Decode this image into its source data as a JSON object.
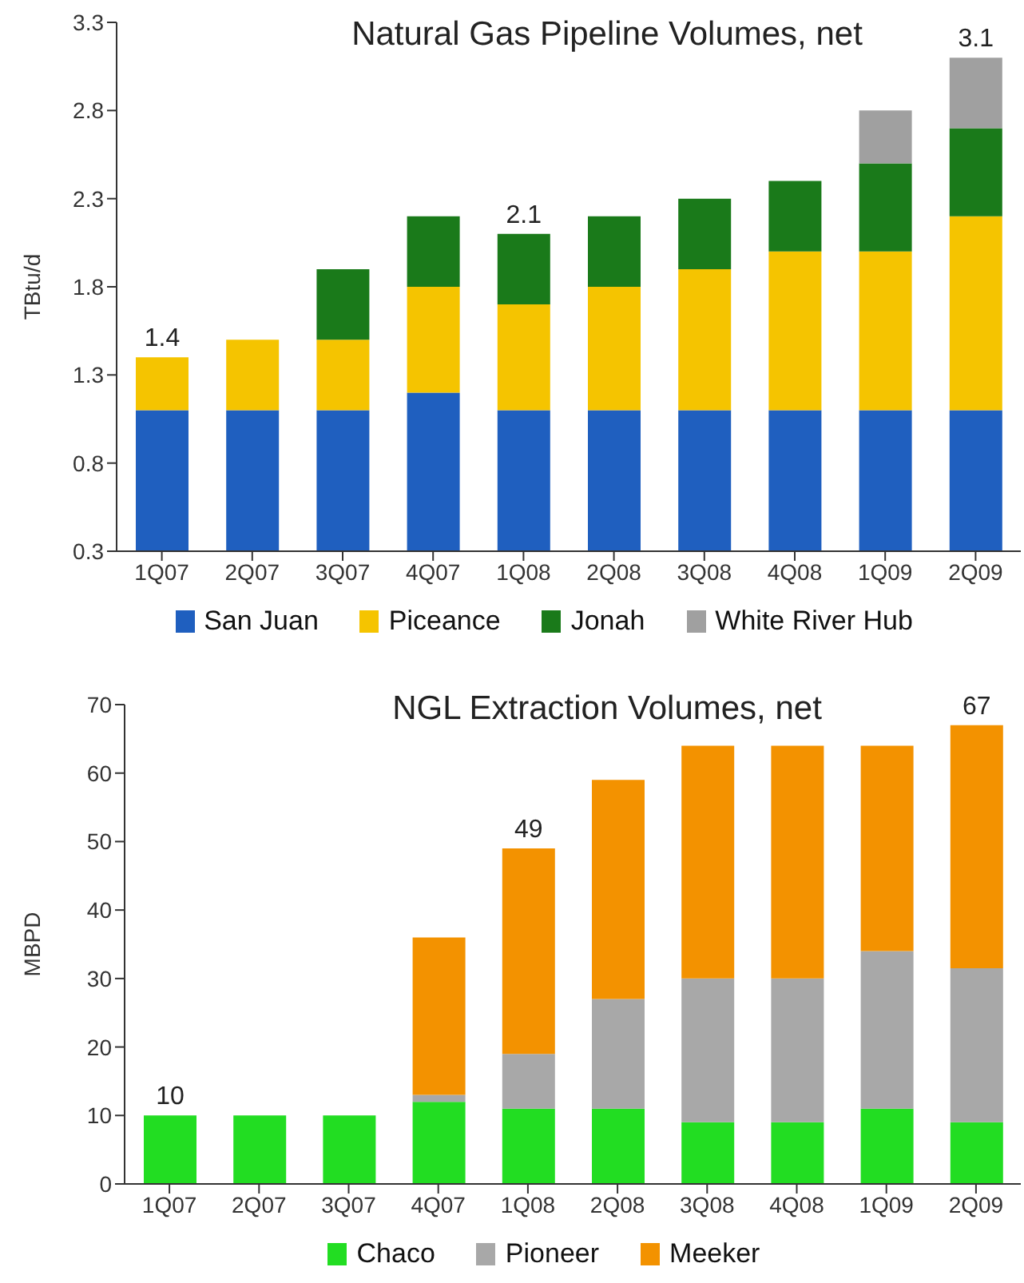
{
  "chart_data": [
    {
      "type": "bar",
      "title": "Natural Gas Pipeline Volumes, net",
      "ylabel": "TBtu/d",
      "stacked": true,
      "categories": [
        "1Q07",
        "2Q07",
        "3Q07",
        "4Q07",
        "1Q08",
        "2Q08",
        "3Q08",
        "4Q08",
        "1Q09",
        "2Q09"
      ],
      "series": [
        {
          "name": "San Juan",
          "color": "#1f5fbf",
          "values": [
            1.1,
            1.1,
            1.1,
            1.2,
            1.1,
            1.1,
            1.1,
            1.1,
            1.1,
            1.1
          ]
        },
        {
          "name": "Piceance",
          "color": "#f5c400",
          "values": [
            0.3,
            0.4,
            0.4,
            0.6,
            0.6,
            0.7,
            0.8,
            0.9,
            0.9,
            1.1
          ]
        },
        {
          "name": "Jonah",
          "color": "#1a7a1a",
          "values": [
            null,
            null,
            0.4,
            0.4,
            0.4,
            0.4,
            0.4,
            0.4,
            0.5,
            0.5
          ]
        },
        {
          "name": "White River Hub",
          "color": "#a0a0a0",
          "values": [
            null,
            null,
            null,
            null,
            null,
            null,
            null,
            null,
            0.3,
            0.4
          ]
        }
      ],
      "totals": [
        "1.4",
        null,
        null,
        null,
        "2.1",
        null,
        null,
        null,
        null,
        "3.1"
      ],
      "ylim": [
        0.3,
        3.3
      ],
      "yticks": [
        0.3,
        0.8,
        1.3,
        1.8,
        2.3,
        2.8,
        3.3
      ],
      "legend": "bottom"
    },
    {
      "type": "bar",
      "title": "NGL Extraction Volumes, net",
      "ylabel": "MBPD",
      "stacked": true,
      "categories": [
        "1Q07",
        "2Q07",
        "3Q07",
        "4Q07",
        "1Q08",
        "2Q08",
        "3Q08",
        "4Q08",
        "1Q09",
        "2Q09"
      ],
      "series": [
        {
          "name": "Chaco",
          "color": "#22dd22",
          "values": [
            10,
            10,
            10,
            12,
            11,
            11,
            9,
            9,
            11,
            9
          ]
        },
        {
          "name": "Pioneer",
          "color": "#a8a8a8",
          "values": [
            null,
            null,
            null,
            1,
            8,
            16,
            21,
            21,
            23,
            22.5
          ]
        },
        {
          "name": "Meeker",
          "color": "#f39200",
          "values": [
            null,
            null,
            null,
            23,
            30,
            32,
            34,
            34,
            30,
            35.5
          ]
        }
      ],
      "totals": [
        "10",
        null,
        null,
        null,
        "49",
        null,
        null,
        null,
        null,
        "67"
      ],
      "ylim": [
        0,
        70
      ],
      "yticks": [
        0,
        10,
        20,
        30,
        40,
        50,
        60,
        70
      ],
      "legend": "bottom"
    }
  ]
}
